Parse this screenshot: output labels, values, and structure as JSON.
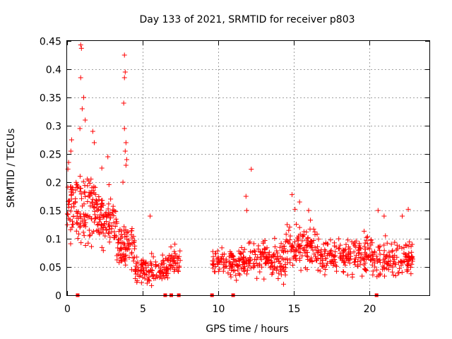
{
  "chart_data": {
    "type": "scatter",
    "title": "Day 133 of 2021, SRMTID for receiver p803",
    "xlabel": "GPS time / hours",
    "ylabel": "SRMTID / TECUs",
    "xlim": [
      0,
      24
    ],
    "ylim": [
      0,
      0.45
    ],
    "xticks": [
      0,
      5,
      10,
      15,
      20
    ],
    "xtick_labels": [
      "0",
      "5",
      "10",
      "15",
      "20"
    ],
    "yticks": [
      0,
      0.05,
      0.1,
      0.15,
      0.2,
      0.25,
      0.3,
      0.35,
      0.4,
      0.45
    ],
    "ytick_labels": [
      "0",
      "0.05",
      "0.1",
      "0.15",
      "0.2",
      "0.25",
      "0.3",
      "0.35",
      "0.4",
      "0.45"
    ],
    "grid": true,
    "marker": "plus",
    "color": "#ff0000",
    "series": [
      {
        "name": "SRMTID",
        "segments": [
          {
            "x_start": 0.0,
            "x_end": 2.0,
            "mean": 0.15,
            "spread": 0.05,
            "count": 140
          },
          {
            "x_start": 2.0,
            "x_end": 3.3,
            "mean": 0.13,
            "spread": 0.04,
            "count": 90
          },
          {
            "x_start": 3.3,
            "x_end": 4.5,
            "mean": 0.09,
            "spread": 0.03,
            "count": 80
          },
          {
            "x_start": 4.5,
            "x_end": 6.7,
            "mean": 0.045,
            "spread": 0.02,
            "count": 120
          },
          {
            "x_start": 6.7,
            "x_end": 7.5,
            "mean": 0.06,
            "spread": 0.02,
            "count": 40
          },
          {
            "x_start": 9.6,
            "x_end": 12.0,
            "mean": 0.06,
            "spread": 0.02,
            "count": 120
          },
          {
            "x_start": 12.0,
            "x_end": 14.5,
            "mean": 0.065,
            "spread": 0.025,
            "count": 130
          },
          {
            "x_start": 14.5,
            "x_end": 16.5,
            "mean": 0.085,
            "spread": 0.03,
            "count": 110
          },
          {
            "x_start": 16.5,
            "x_end": 20.5,
            "mean": 0.07,
            "spread": 0.025,
            "count": 200
          },
          {
            "x_start": 20.5,
            "x_end": 22.9,
            "mean": 0.065,
            "spread": 0.025,
            "count": 120
          }
        ],
        "outliers": [
          {
            "x": 0.9,
            "y": 0.443
          },
          {
            "x": 0.95,
            "y": 0.437
          },
          {
            "x": 0.9,
            "y": 0.385
          },
          {
            "x": 1.1,
            "y": 0.35
          },
          {
            "x": 1.0,
            "y": 0.33
          },
          {
            "x": 1.2,
            "y": 0.31
          },
          {
            "x": 0.85,
            "y": 0.295
          },
          {
            "x": 1.7,
            "y": 0.29
          },
          {
            "x": 1.8,
            "y": 0.27
          },
          {
            "x": 0.3,
            "y": 0.275
          },
          {
            "x": 0.25,
            "y": 0.255
          },
          {
            "x": 0.1,
            "y": 0.235
          },
          {
            "x": 3.8,
            "y": 0.425
          },
          {
            "x": 3.85,
            "y": 0.395
          },
          {
            "x": 3.8,
            "y": 0.385
          },
          {
            "x": 3.75,
            "y": 0.34
          },
          {
            "x": 3.8,
            "y": 0.295
          },
          {
            "x": 3.9,
            "y": 0.27
          },
          {
            "x": 3.85,
            "y": 0.255
          },
          {
            "x": 3.95,
            "y": 0.24
          },
          {
            "x": 3.9,
            "y": 0.23
          },
          {
            "x": 3.7,
            "y": 0.2
          },
          {
            "x": 2.7,
            "y": 0.245
          },
          {
            "x": 2.3,
            "y": 0.225
          },
          {
            "x": 12.2,
            "y": 0.223
          },
          {
            "x": 11.9,
            "y": 0.15
          },
          {
            "x": 11.85,
            "y": 0.175
          },
          {
            "x": 14.9,
            "y": 0.178
          },
          {
            "x": 15.4,
            "y": 0.165
          },
          {
            "x": 15.1,
            "y": 0.152
          },
          {
            "x": 16.0,
            "y": 0.15
          },
          {
            "x": 20.6,
            "y": 0.15
          },
          {
            "x": 21.0,
            "y": 0.14
          },
          {
            "x": 22.6,
            "y": 0.152
          },
          {
            "x": 22.2,
            "y": 0.14
          },
          {
            "x": 5.5,
            "y": 0.14
          }
        ]
      },
      {
        "name": "baseline markers",
        "marker": "square",
        "points": [
          {
            "x": 0.7,
            "y": 0
          },
          {
            "x": 6.5,
            "y": 0
          },
          {
            "x": 6.9,
            "y": 0
          },
          {
            "x": 7.4,
            "y": 0
          },
          {
            "x": 9.6,
            "y": 0
          },
          {
            "x": 11.0,
            "y": 0
          },
          {
            "x": 20.5,
            "y": 0
          }
        ]
      }
    ]
  }
}
